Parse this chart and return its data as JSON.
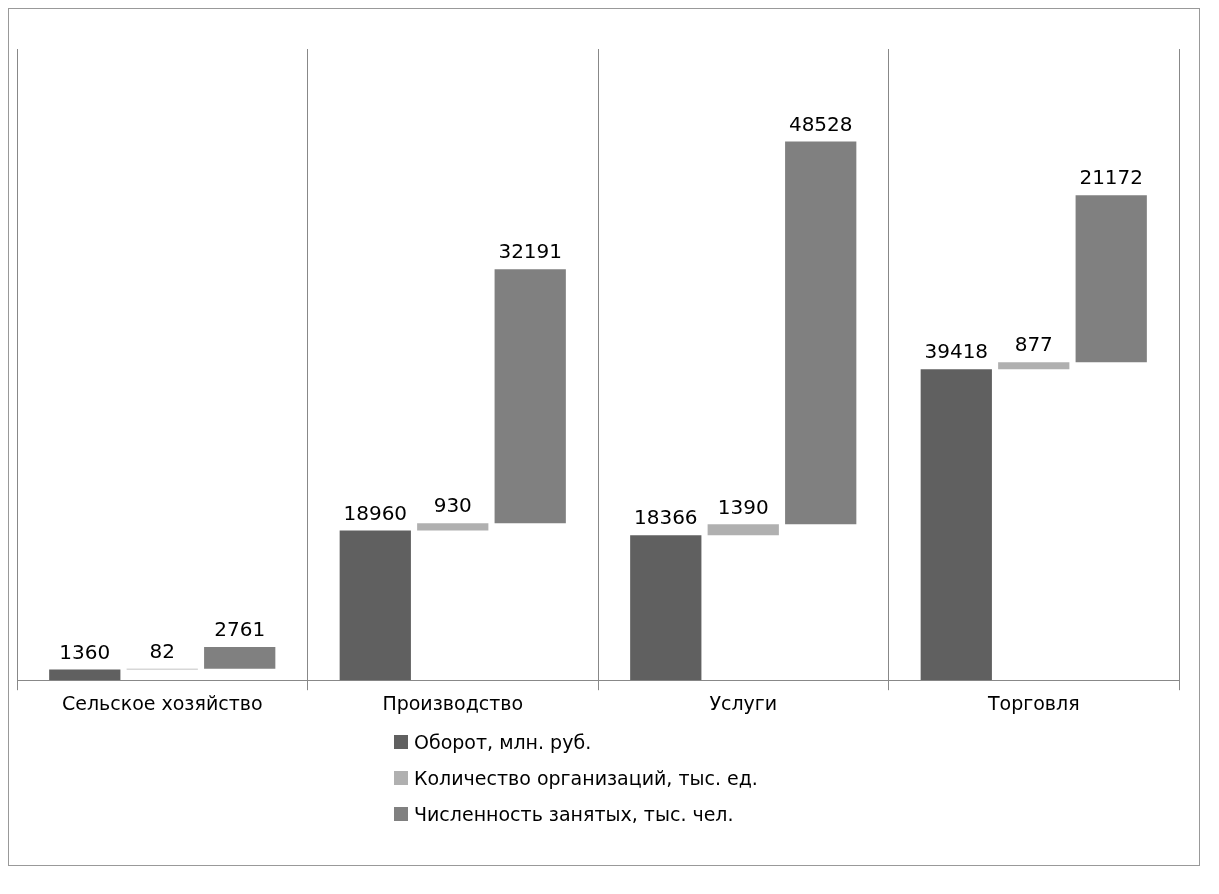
{
  "chart_data": {
    "type": "bar",
    "categories": [
      "Сельское хозяйство",
      "Производство",
      "Услуги",
      "Торговля"
    ],
    "series": [
      {
        "name": "Оборот, млн. руб.",
        "color": "#606060",
        "values": [
          1360,
          18960,
          18366,
          39418
        ]
      },
      {
        "name": "Количество организаций, тыс. ед.",
        "color": "#b0b0b0",
        "values": [
          82,
          930,
          1390,
          877
        ]
      },
      {
        "name": "Численность занятых, тыс. чел.",
        "color": "#808080",
        "values": [
          2761,
          32191,
          48528,
          21172
        ]
      }
    ],
    "stacked": true,
    "ylim": [
      0,
      80000
    ],
    "tick_labels": "x",
    "grid": "x",
    "legend": "bottom",
    "data_labels": true
  }
}
